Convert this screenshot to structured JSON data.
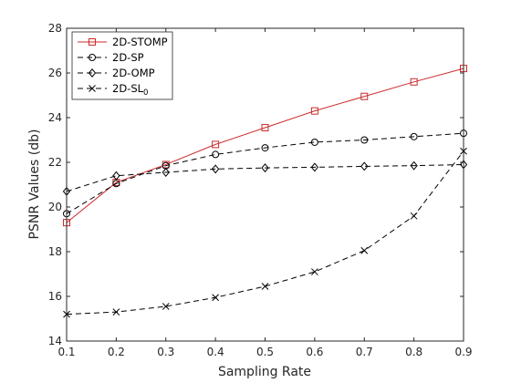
{
  "chart_data": {
    "type": "line",
    "xlabel": "Sampling Rate",
    "ylabel": "PSNR Values (db)",
    "xlim": [
      0.1,
      0.9
    ],
    "ylim": [
      14,
      28
    ],
    "x": [
      0.1,
      0.2,
      0.3,
      0.4,
      0.5,
      0.6,
      0.7,
      0.8,
      0.9
    ],
    "x_ticks": [
      "0.1",
      "0.2",
      "0.3",
      "0.4",
      "0.5",
      "0.6",
      "0.7",
      "0.8",
      "0.9"
    ],
    "y_ticks": [
      "14",
      "16",
      "18",
      "20",
      "22",
      "24",
      "26",
      "28"
    ],
    "grid": false,
    "legend_position": "top-left",
    "series": [
      {
        "name": "2D-STOMP",
        "name_sub": "",
        "color": "#cc2a2a",
        "dash": "solid",
        "marker": "square",
        "values": [
          19.3,
          21.1,
          21.9,
          22.8,
          23.55,
          24.3,
          24.95,
          25.6,
          26.2
        ]
      },
      {
        "name": "2D-SP",
        "name_sub": "",
        "color": "#000000",
        "dash": "dashed",
        "marker": "circle",
        "values": [
          19.7,
          21.05,
          21.85,
          22.35,
          22.65,
          22.9,
          23.0,
          23.15,
          23.3
        ]
      },
      {
        "name": "2D-OMP",
        "name_sub": "",
        "color": "#000000",
        "dash": "dashed",
        "marker": "diamond",
        "values": [
          20.7,
          21.4,
          21.55,
          21.7,
          21.75,
          21.78,
          21.82,
          21.85,
          21.9
        ]
      },
      {
        "name": "2D-SL",
        "name_sub": "0",
        "color": "#000000",
        "dash": "dashed",
        "marker": "x",
        "values": [
          15.2,
          15.3,
          15.55,
          15.95,
          16.45,
          17.1,
          18.05,
          19.6,
          22.5
        ]
      }
    ]
  }
}
